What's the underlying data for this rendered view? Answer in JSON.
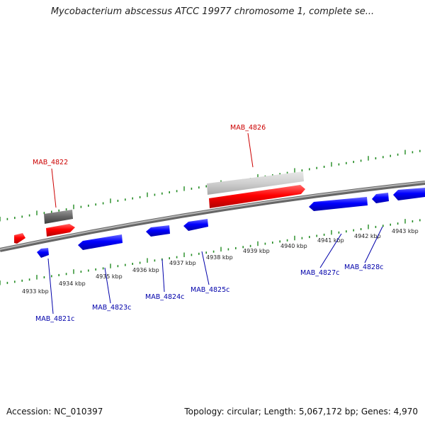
{
  "title": "Mycobacterium abscessus ATCC 19977 chromosome 1, complete se...",
  "footer": {
    "accession": "Accession: NC_010397",
    "summary": "Topology: circular; Length: 5,067,172 bp; Genes: 4,970"
  },
  "colors": {
    "forward_gene": "#ff0000",
    "reverse_gene": "#0000ff",
    "forward_label": "#cc0000",
    "reverse_label": "#0000aa",
    "tick": "#228b22",
    "backbone": "#888888"
  },
  "scale_labels": [
    "4933 kbp",
    "4934 kbp",
    "4935 kbp",
    "4936 kbp",
    "4937 kbp",
    "4938 kbp",
    "4939 kbp",
    "4940 kbp",
    "4941 kbp",
    "4942 kbp",
    "4943 kbp"
  ],
  "gene_labels": {
    "forward": [
      "MAB_4822",
      "MAB_4826"
    ],
    "reverse": [
      "MAB_4821c",
      "MAB_4823c",
      "MAB_4824c",
      "MAB_4825c",
      "MAB_4827c",
      "MAB_4828c"
    ]
  }
}
